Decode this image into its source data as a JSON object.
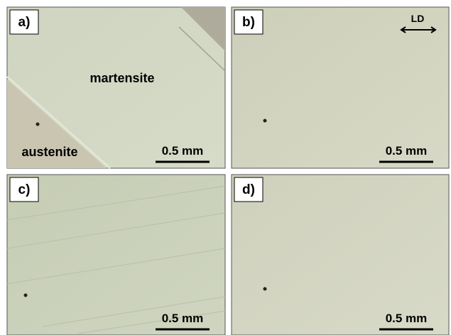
{
  "panels": [
    {
      "label": "a)",
      "scale_bar": "0.5 mm",
      "annotations": [
        "martensite",
        "austenite"
      ]
    },
    {
      "label": "b)",
      "scale_bar": "0.5 mm",
      "annotations": [
        "LD"
      ]
    },
    {
      "label": "c)",
      "scale_bar": "0.5 mm"
    },
    {
      "label": "d)",
      "scale_bar": "0.5 mm"
    }
  ]
}
